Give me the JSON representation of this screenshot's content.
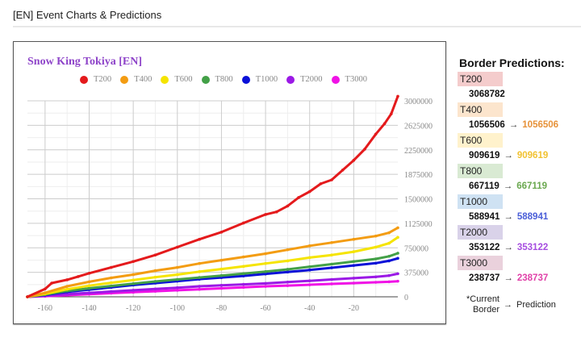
{
  "page": {
    "title": "[EN] Event Charts & Predictions"
  },
  "chart_data": {
    "type": "line",
    "title": "Snow King Tokiya [EN]",
    "xlabel": "",
    "ylabel": "",
    "xlim": [
      -168,
      0
    ],
    "ylim": [
      0,
      3000000
    ],
    "x_ticks": [
      -160,
      -140,
      -120,
      -100,
      -80,
      -60,
      -40,
      -20
    ],
    "y_ticks": [
      0,
      375000,
      750000,
      1125000,
      1500000,
      1875000,
      2250000,
      2625000,
      3000000
    ],
    "grid": true,
    "legend_position": "top",
    "series": [
      {
        "name": "T200",
        "color": "#e41a1c",
        "points": [
          [
            -168,
            0
          ],
          [
            -160,
            120000
          ],
          [
            -157,
            210000
          ],
          [
            -150,
            260000
          ],
          [
            -145,
            310000
          ],
          [
            -140,
            360000
          ],
          [
            -130,
            450000
          ],
          [
            -120,
            540000
          ],
          [
            -110,
            640000
          ],
          [
            -100,
            760000
          ],
          [
            -90,
            880000
          ],
          [
            -80,
            990000
          ],
          [
            -70,
            1130000
          ],
          [
            -60,
            1260000
          ],
          [
            -55,
            1300000
          ],
          [
            -50,
            1390000
          ],
          [
            -45,
            1520000
          ],
          [
            -40,
            1610000
          ],
          [
            -35,
            1730000
          ],
          [
            -30,
            1790000
          ],
          [
            -25,
            1940000
          ],
          [
            -20,
            2090000
          ],
          [
            -15,
            2260000
          ],
          [
            -10,
            2490000
          ],
          [
            -6,
            2650000
          ],
          [
            -3,
            2800000
          ],
          [
            0,
            3068782
          ]
        ]
      },
      {
        "name": "T400",
        "color": "#f39c12",
        "points": [
          [
            -168,
            0
          ],
          [
            -160,
            60000
          ],
          [
            -150,
            160000
          ],
          [
            -140,
            230000
          ],
          [
            -130,
            290000
          ],
          [
            -120,
            340000
          ],
          [
            -110,
            400000
          ],
          [
            -100,
            450000
          ],
          [
            -90,
            510000
          ],
          [
            -80,
            560000
          ],
          [
            -70,
            610000
          ],
          [
            -60,
            660000
          ],
          [
            -50,
            720000
          ],
          [
            -40,
            780000
          ],
          [
            -30,
            830000
          ],
          [
            -20,
            880000
          ],
          [
            -10,
            930000
          ],
          [
            -4,
            980000
          ],
          [
            0,
            1056506
          ]
        ]
      },
      {
        "name": "T600",
        "color": "#f5e400",
        "points": [
          [
            -168,
            0
          ],
          [
            -160,
            45000
          ],
          [
            -150,
            115000
          ],
          [
            -140,
            170000
          ],
          [
            -130,
            215000
          ],
          [
            -120,
            255000
          ],
          [
            -110,
            300000
          ],
          [
            -100,
            340000
          ],
          [
            -90,
            385000
          ],
          [
            -80,
            425000
          ],
          [
            -70,
            465000
          ],
          [
            -60,
            510000
          ],
          [
            -50,
            550000
          ],
          [
            -40,
            600000
          ],
          [
            -30,
            640000
          ],
          [
            -20,
            690000
          ],
          [
            -10,
            760000
          ],
          [
            -4,
            820000
          ],
          [
            0,
            909619
          ]
        ]
      },
      {
        "name": "T800",
        "color": "#43a047",
        "points": [
          [
            -168,
            0
          ],
          [
            -160,
            35000
          ],
          [
            -150,
            90000
          ],
          [
            -140,
            130000
          ],
          [
            -130,
            165000
          ],
          [
            -120,
            200000
          ],
          [
            -110,
            235000
          ],
          [
            -100,
            265000
          ],
          [
            -90,
            295000
          ],
          [
            -80,
            325000
          ],
          [
            -70,
            355000
          ],
          [
            -60,
            385000
          ],
          [
            -50,
            420000
          ],
          [
            -40,
            460000
          ],
          [
            -30,
            500000
          ],
          [
            -20,
            540000
          ],
          [
            -10,
            580000
          ],
          [
            -4,
            620000
          ],
          [
            0,
            667119
          ]
        ]
      },
      {
        "name": "T1000",
        "color": "#0a10d8",
        "points": [
          [
            -168,
            0
          ],
          [
            -160,
            30000
          ],
          [
            -150,
            75000
          ],
          [
            -140,
            110000
          ],
          [
            -130,
            145000
          ],
          [
            -120,
            180000
          ],
          [
            -110,
            210000
          ],
          [
            -100,
            240000
          ],
          [
            -90,
            270000
          ],
          [
            -80,
            295000
          ],
          [
            -70,
            320000
          ],
          [
            -60,
            350000
          ],
          [
            -50,
            380000
          ],
          [
            -40,
            410000
          ],
          [
            -30,
            445000
          ],
          [
            -20,
            480000
          ],
          [
            -10,
            515000
          ],
          [
            -4,
            550000
          ],
          [
            0,
            588941
          ]
        ]
      },
      {
        "name": "T2000",
        "color": "#9b19e6",
        "points": [
          [
            -168,
            0
          ],
          [
            -160,
            15000
          ],
          [
            -150,
            40000
          ],
          [
            -140,
            60000
          ],
          [
            -130,
            80000
          ],
          [
            -120,
            100000
          ],
          [
            -110,
            120000
          ],
          [
            -100,
            140000
          ],
          [
            -90,
            160000
          ],
          [
            -80,
            175000
          ],
          [
            -70,
            190000
          ],
          [
            -60,
            205000
          ],
          [
            -50,
            225000
          ],
          [
            -40,
            245000
          ],
          [
            -30,
            265000
          ],
          [
            -20,
            285000
          ],
          [
            -10,
            305000
          ],
          [
            -4,
            325000
          ],
          [
            0,
            353122
          ]
        ]
      },
      {
        "name": "T3000",
        "color": "#f012e6",
        "points": [
          [
            -168,
            0
          ],
          [
            -160,
            10000
          ],
          [
            -150,
            25000
          ],
          [
            -140,
            40000
          ],
          [
            -130,
            55000
          ],
          [
            -120,
            70000
          ],
          [
            -110,
            85000
          ],
          [
            -100,
            100000
          ],
          [
            -90,
            115000
          ],
          [
            -80,
            130000
          ],
          [
            -70,
            145000
          ],
          [
            -60,
            160000
          ],
          [
            -50,
            172000
          ],
          [
            -40,
            185000
          ],
          [
            -30,
            198000
          ],
          [
            -20,
            210000
          ],
          [
            -10,
            222000
          ],
          [
            -4,
            230000
          ],
          [
            0,
            238737
          ]
        ]
      }
    ]
  },
  "predictions": {
    "title": "Border Predictions:",
    "tiers": [
      {
        "label": "T200",
        "current": "3068782",
        "prediction": "",
        "bg": "#f4cccc",
        "color": "#e06666"
      },
      {
        "label": "T400",
        "current": "1056506",
        "prediction": "1056506",
        "bg": "#fce5cd",
        "color": "#e69138"
      },
      {
        "label": "T600",
        "current": "909619",
        "prediction": "909619",
        "bg": "#fff2cc",
        "color": "#f1c232"
      },
      {
        "label": "T800",
        "current": "667119",
        "prediction": "667119",
        "bg": "#d9ead3",
        "color": "#6aa84f"
      },
      {
        "label": "T1000",
        "current": "588941",
        "prediction": "588941",
        "bg": "#cfe2f3",
        "color": "#4a5ed8"
      },
      {
        "label": "T2000",
        "current": "353122",
        "prediction": "353122",
        "bg": "#d9d2e9",
        "color": "#a64de0"
      },
      {
        "label": "T3000",
        "current": "238737",
        "prediction": "238737",
        "bg": "#ead1dc",
        "color": "#e040a8"
      }
    ],
    "arrow": "→",
    "note": {
      "left_line1": "*Current",
      "left_line2": "Border",
      "arrow": "→",
      "right": "Prediction"
    }
  }
}
